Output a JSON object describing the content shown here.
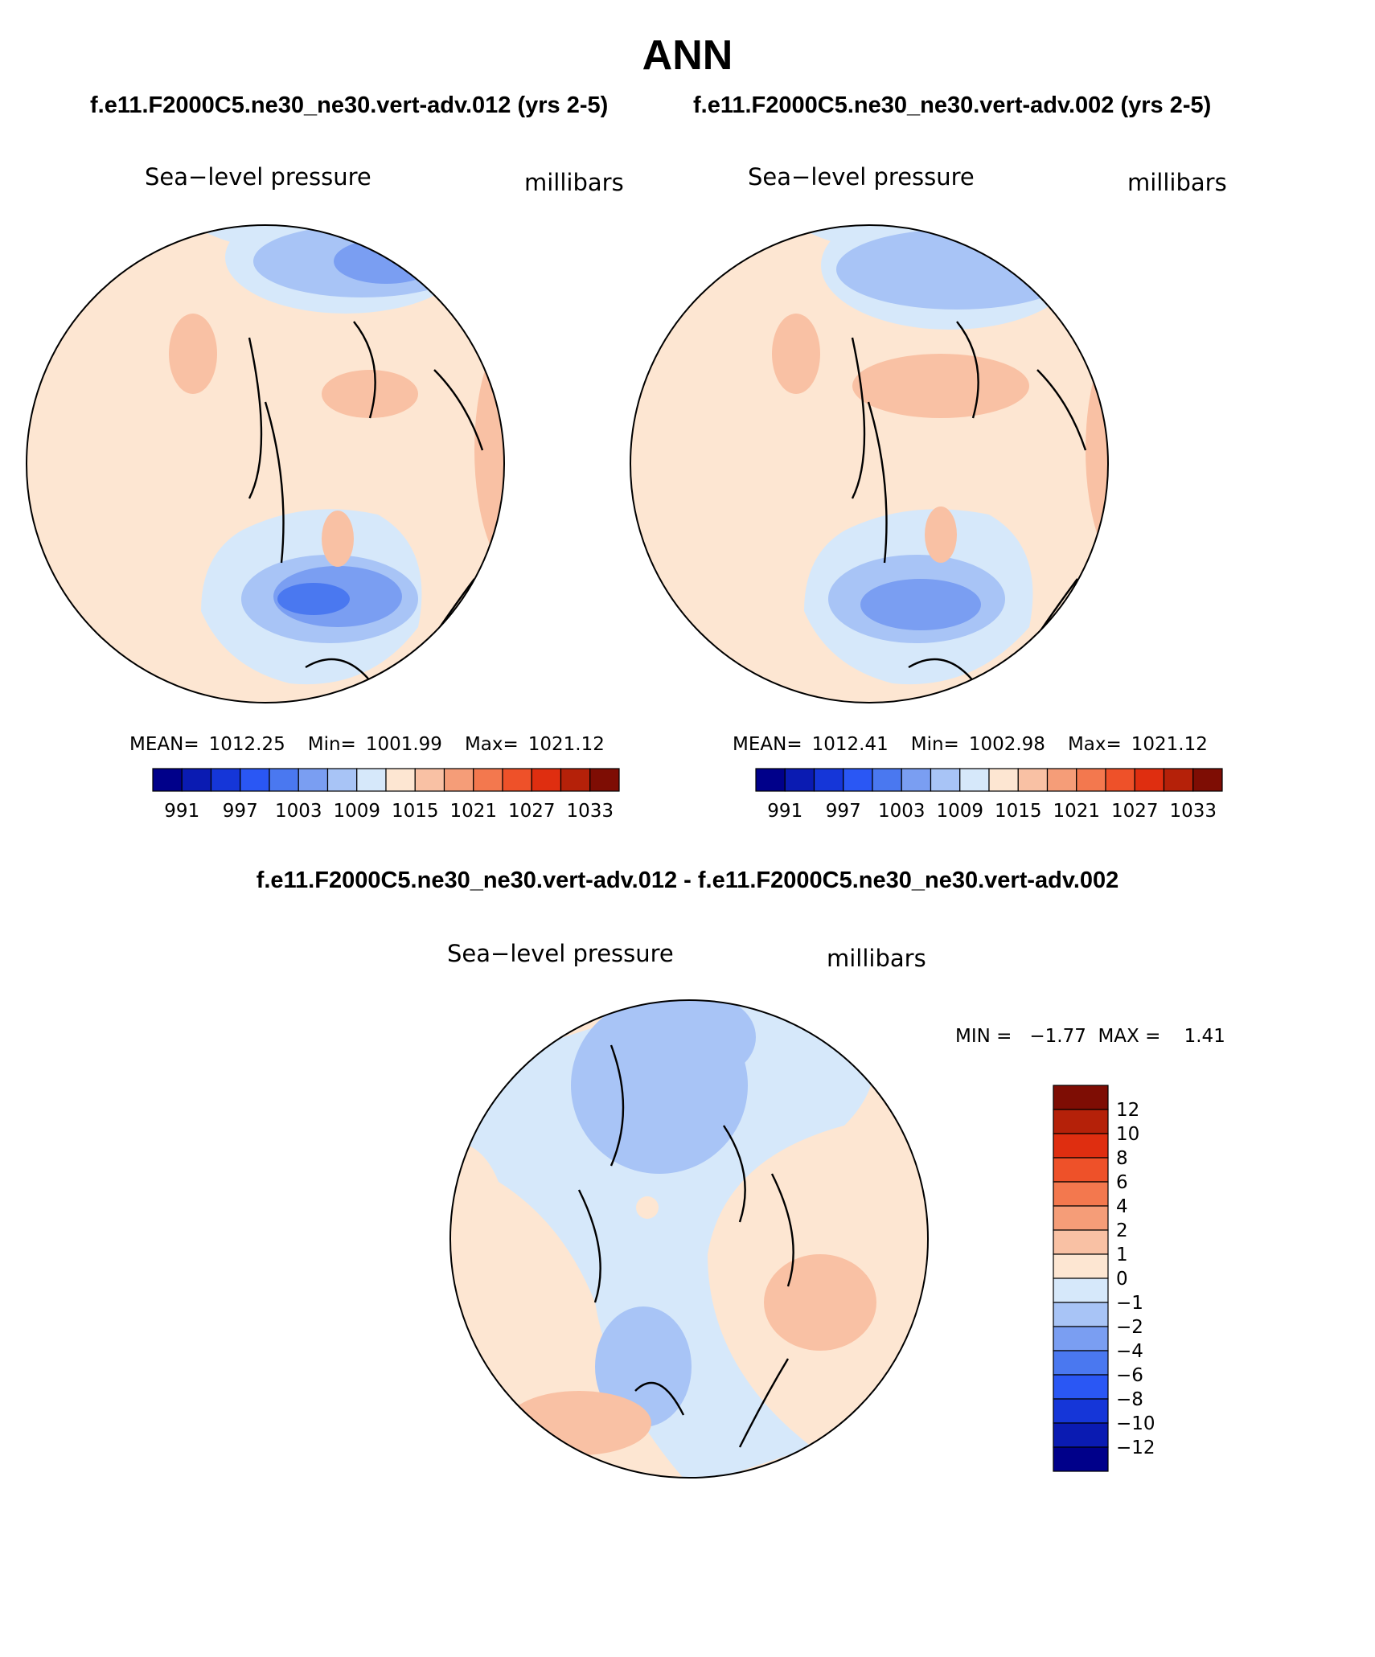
{
  "title": "ANN",
  "panels": [
    {
      "case_label": "f.e11.F2000C5.ne30_ne30.vert-adv.012 (yrs 2-5)",
      "variable": "Sea−level pressure",
      "units": "millibars",
      "stats": {
        "mean_label": "MEAN=",
        "mean": "1012.25",
        "min_label": "Min=",
        "min": "1001.99",
        "max_label": "Max=",
        "max": "1021.12"
      }
    },
    {
      "case_label": "f.e11.F2000C5.ne30_ne30.vert-adv.002 (yrs 2-5)",
      "variable": "Sea−level pressure",
      "units": "millibars",
      "stats": {
        "mean_label": "MEAN=",
        "mean": "1012.41",
        "min_label": "Min=",
        "min": "1002.98",
        "max_label": "Max=",
        "max": "1021.12"
      }
    }
  ],
  "diff_panel": {
    "case_label": "f.e11.F2000C5.ne30_ne30.vert-adv.012 - f.e11.F2000C5.ne30_ne30.vert-adv.002",
    "variable": "Sea−level pressure",
    "units": "millibars",
    "stats_text": "MIN =   −1.77  MAX =    1.41"
  },
  "abs_colorbar": {
    "colors": [
      "#00008a",
      "#0a1bb2",
      "#1536d8",
      "#2a57f4",
      "#4a78f0",
      "#7a9ef2",
      "#a8c4f6",
      "#d6e8fa",
      "#fde6d2",
      "#f9c1a4",
      "#f59d78",
      "#f3784e",
      "#ee5129",
      "#df2e10",
      "#b52109",
      "#7e0d04"
    ],
    "labels": [
      "991",
      "997",
      "1003",
      "1009",
      "1015",
      "1021",
      "1027",
      "1033"
    ]
  },
  "diff_colorbar": {
    "colors_top_to_bottom": [
      "#7e0d04",
      "#b52109",
      "#df2e10",
      "#ee5129",
      "#f3784e",
      "#f59d78",
      "#f9c1a4",
      "#fde6d2",
      "#d6e8fa",
      "#a8c4f6",
      "#7a9ef2",
      "#4a78f0",
      "#2a57f4",
      "#1536d8",
      "#0a1bb2",
      "#00008a"
    ],
    "labels": [
      "12",
      "10",
      "8",
      "6",
      "4",
      "2",
      "1",
      "0",
      "−1",
      "−2",
      "−4",
      "−6",
      "−8",
      "−10",
      "−12"
    ]
  }
}
